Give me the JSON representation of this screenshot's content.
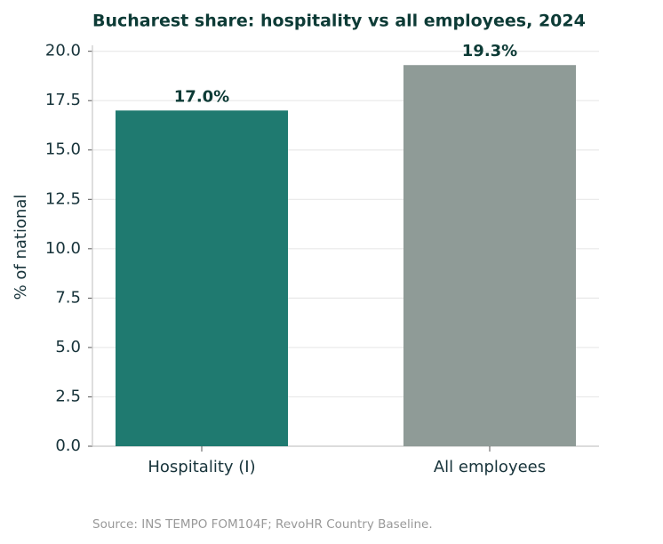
{
  "chart_data": {
    "type": "bar",
    "title": "Bucharest share: hospitality vs all employees, 2024",
    "y_label": "% of national",
    "categories": [
      "Hospitality (I)",
      "All employees"
    ],
    "values": [
      17.0,
      19.3
    ],
    "value_labels": [
      "17.0%",
      "19.3%"
    ],
    "colors": [
      "#1f7a70",
      "#8f9b97"
    ],
    "ylim": [
      0,
      20.3
    ],
    "yticks": [
      {
        "value": 0,
        "label": "0.0"
      },
      2.5,
      {
        "value": 5,
        "label": "5.0"
      },
      7.5,
      {
        "value": 10,
        "label": "10.0"
      },
      12.5,
      {
        "value": 15,
        "label": "15.0"
      },
      17.5,
      {
        "value": 20,
        "label": "20.0"
      }
    ],
    "grid": true,
    "source": "Source: INS TEMPO FOM104F; RevoHR Country Baseline."
  }
}
